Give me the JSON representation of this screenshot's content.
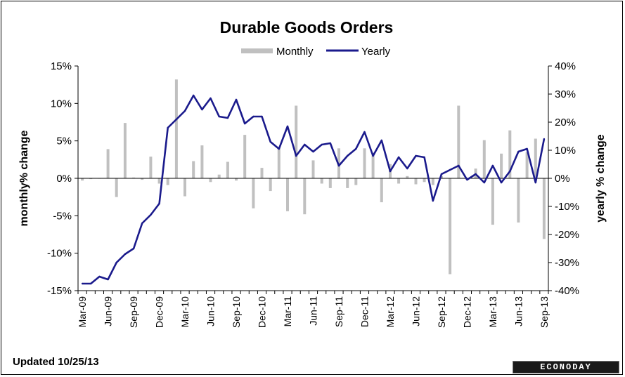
{
  "chart_data": {
    "type": "bar+line",
    "title": "Durable Goods  Orders",
    "left_axis_label": "monthly% change",
    "right_axis_label": "yearly % change",
    "left_ylim": [
      -15,
      15
    ],
    "right_ylim": [
      -40,
      40
    ],
    "left_ticks": [
      "15%",
      "10%",
      "5%",
      "0%",
      "-5%",
      "-10%",
      "-15%"
    ],
    "right_ticks": [
      "40%",
      "30%",
      "20%",
      "10%",
      "0%",
      "-10%",
      "-20%",
      "-30%",
      "-40%"
    ],
    "x_tick_labels": [
      "Mar-09",
      "Jun-09",
      "Sep-09",
      "Dec-09",
      "Mar-10",
      "Jun-10",
      "Sep-10",
      "Dec-10",
      "Mar-11",
      "Jun-11",
      "Sep-11",
      "Dec-11",
      "Mar-12",
      "Jun-12",
      "Sep-12",
      "Dec-12",
      "Mar-13",
      "Jun-13",
      "Sep-13"
    ],
    "legend_position": "top-center",
    "grid": false,
    "months": [
      "Mar-09",
      "Apr-09",
      "May-09",
      "Jun-09",
      "Jul-09",
      "Aug-09",
      "Sep-09",
      "Oct-09",
      "Nov-09",
      "Dec-09",
      "Jan-10",
      "Feb-10",
      "Mar-10",
      "Apr-10",
      "May-10",
      "Jun-10",
      "Jul-10",
      "Aug-10",
      "Sep-10",
      "Oct-10",
      "Nov-10",
      "Dec-10",
      "Jan-11",
      "Feb-11",
      "Mar-11",
      "Apr-11",
      "May-11",
      "Jun-11",
      "Jul-11",
      "Aug-11",
      "Sep-11",
      "Oct-11",
      "Nov-11",
      "Dec-11",
      "Jan-12",
      "Feb-12",
      "Mar-12",
      "Apr-12",
      "May-12",
      "Jun-12",
      "Jul-12",
      "Aug-12",
      "Sep-12",
      "Oct-12",
      "Nov-12",
      "Dec-12",
      "Jan-13",
      "Feb-13",
      "Mar-13",
      "Apr-13",
      "May-13",
      "Jun-13",
      "Jul-13",
      "Aug-13",
      "Sep-13"
    ],
    "series": [
      {
        "name": "Monthly",
        "type": "bar",
        "axis": "left",
        "color": "#c0c0c0",
        "values": [
          -0.3,
          -0.1,
          0.0,
          3.9,
          -2.5,
          7.4,
          0.1,
          -0.2,
          2.9,
          -0.7,
          -0.9,
          13.2,
          -2.4,
          2.3,
          4.4,
          -0.5,
          0.5,
          2.2,
          -0.3,
          5.8,
          -4.0,
          1.4,
          -1.7,
          4.1,
          -4.4,
          9.7,
          -4.8,
          2.4,
          -0.7,
          -1.3,
          4.0,
          -1.3,
          -0.9,
          4.0,
          3.4,
          -3.2,
          1.9,
          -0.7,
          0.3,
          -0.8,
          -0.5,
          -0.9,
          0.3,
          -12.8,
          9.7,
          -0.2,
          1.3,
          5.1,
          -6.2,
          3.3,
          6.4,
          -5.9,
          3.5,
          5.3,
          -8.1
        ]
      },
      {
        "name": "Yearly",
        "type": "line",
        "axis": "right",
        "color": "#1a1a8c",
        "values": [
          -37.5,
          -37.5,
          -35,
          -36,
          -30,
          -27,
          -25,
          -16,
          -13,
          -9,
          18,
          21,
          24,
          29.5,
          24.5,
          28.5,
          22,
          21.5,
          28,
          19.5,
          22,
          22,
          13,
          10.5,
          18.5,
          8,
          12,
          9.5,
          12,
          12.5,
          4.5,
          8,
          10.5,
          16.5,
          8,
          13.5,
          2.5,
          7.5,
          3.5,
          8,
          7.5,
          -8,
          1.5,
          3,
          4.5,
          -0.5,
          1.5,
          -1.5,
          4.5,
          -1.5,
          2.5,
          9.5,
          10.5,
          -1.5,
          14
        ]
      }
    ]
  },
  "footer": {
    "updated": "Updated 10/25/13",
    "logo": "ECONODAY"
  }
}
